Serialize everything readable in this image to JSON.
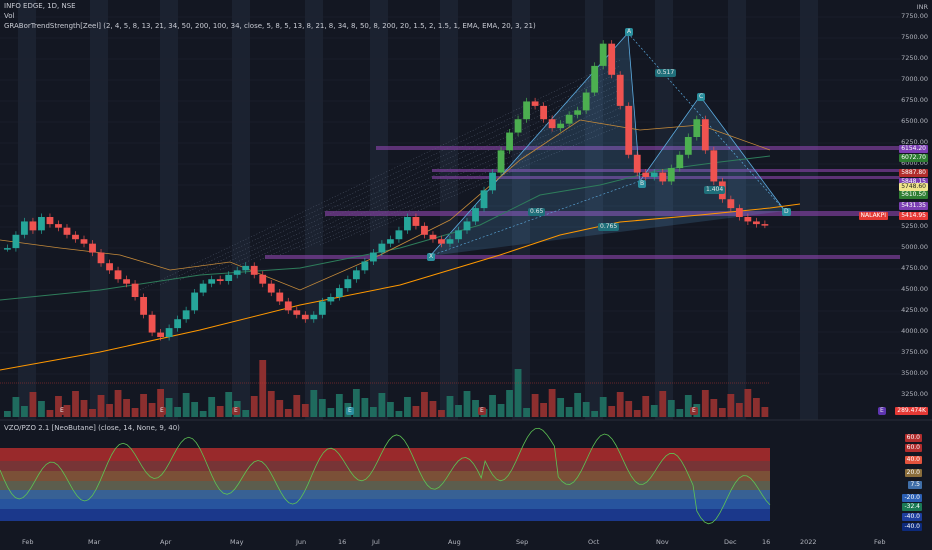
{
  "header": {
    "symbol_line": "INFO EDGE, 1D, NSE",
    "vol_label": "Vol",
    "indicator_line": "GRABorTrendStrength[Zeel] (2, 4, 5, 8, 13, 21, 34, 50, 200, 100, 34, close, 5, 8, 5, 13, 8, 21, 8, 34, 8, 50, 8, 200, 20, 1.5, 2, 1.5, 1, EMA, EMA, 20, 3, 21)",
    "oscillator_line": "VZO/PZO 2.1 [NeoButane] (close, 14, None, 9, 40)"
  },
  "price_axis": {
    "currency": "INR",
    "ticks": [
      "7750.00",
      "7500.00",
      "7250.00",
      "7000.00",
      "6750.00",
      "6500.00",
      "6250.00",
      "6000.00",
      "5750.00",
      "5500.00",
      "5250.00",
      "5000.00",
      "4750.00",
      "4500.00",
      "4250.00",
      "4000.00",
      "3750.00",
      "3500.00",
      "3250.00"
    ],
    "badges": [
      {
        "text": "6154.20",
        "color": "#7b3fb3"
      },
      {
        "text": "6072.70",
        "color": "#2e7d32"
      },
      {
        "text": "5887.80",
        "color": "#b22d2d"
      },
      {
        "text": "5848.15",
        "color": "#7b3fb3"
      },
      {
        "text": "5748.60",
        "color": "#f0e68c"
      },
      {
        "text": "5610.50",
        "color": "#2e7d32"
      },
      {
        "text": "5431.35",
        "color": "#7b3fb3"
      },
      {
        "text": "5414.95",
        "color": "#e53935"
      },
      {
        "text": "NALAKPI",
        "color": "#e53935"
      }
    ],
    "volume_badge": "289.474K"
  },
  "osc_axis": {
    "badges": [
      {
        "text": "60.0",
        "color": "#b22d2d"
      },
      {
        "text": "60.0",
        "color": "#b22d2d"
      },
      {
        "text": "40.0",
        "color": "#e3533d"
      },
      {
        "text": "20.0",
        "color": "#8a6d3b"
      },
      {
        "text": "7.5",
        "color": "#3f6ea8"
      },
      {
        "text": "-20.0",
        "color": "#2b5fb4"
      },
      {
        "text": "-32.4",
        "color": "#1b7a55"
      },
      {
        "text": "-40.0",
        "color": "#1d3e9e"
      },
      {
        "text": "-40.0",
        "color": "#0d2a7a"
      }
    ]
  },
  "time_axis": {
    "ticks": [
      "Feb",
      "Mar",
      "Apr",
      "May",
      "Jun",
      "16",
      "Jul",
      "Aug",
      "Sep",
      "Oct",
      "Nov",
      "Dec",
      "16",
      "2022",
      "Feb"
    ]
  },
  "harmonic": {
    "points": [
      "A",
      "B",
      "C",
      "D",
      "X"
    ],
    "ratios": [
      "0.517",
      "1.404",
      "0.765",
      "0.65"
    ]
  },
  "event_markers": [
    "E",
    "E",
    "E",
    "E",
    "E",
    "E",
    "E"
  ],
  "colors": {
    "background": "#131722",
    "up_candle": "#26a69a",
    "bright_up": "#4caf50",
    "down_candle": "#ef5350",
    "zone": "#8e44ad",
    "ema_orange": "#ff9800",
    "pattern": "#5dade2"
  },
  "chart_data": {
    "type": "candlestick",
    "series": [
      {
        "name": "INFO EDGE",
        "values": [
          5150,
          5300,
          5450,
          5350,
          5500,
          5420,
          5380,
          5300,
          5250,
          5200,
          5100,
          4980,
          4900,
          4800,
          4750,
          4600,
          4400,
          4200,
          4150,
          4250,
          4350,
          4450,
          4650,
          4750,
          4800,
          4780,
          4850,
          4900,
          4950,
          4850,
          4750,
          4650,
          4550,
          4450,
          4400,
          4350,
          4400,
          4550,
          4600,
          4700,
          4800,
          4900,
          5000,
          5100,
          5200,
          5250,
          5350,
          5500,
          5400,
          5300,
          5250,
          5200,
          5250,
          5350,
          5450,
          5600,
          5800,
          6000,
          6250,
          6450,
          6600,
          6800,
          6750,
          6600,
          6500,
          6550,
          6650,
          6700,
          6900,
          7200,
          7450,
          7100,
          6750,
          6200,
          6000,
          5950,
          6000,
          5900,
          6050,
          6200,
          6400,
          6600,
          6250,
          5900,
          5700,
          5600,
          5500,
          5450,
          5420,
          5415
        ]
      },
      {
        "name": "Vol",
        "values": []
      }
    ],
    "ylim": [
      3250,
      7750
    ],
    "oscillator": {
      "name": "VZO/PZO",
      "ylim": [
        -60,
        60
      ]
    }
  }
}
